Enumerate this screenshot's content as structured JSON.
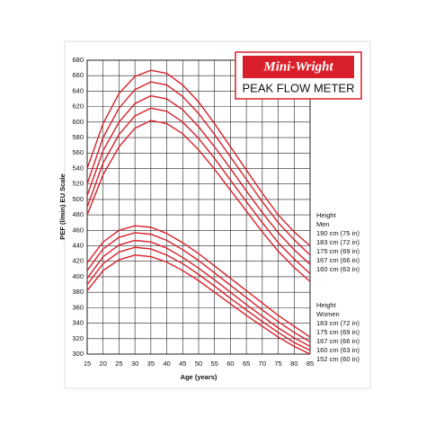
{
  "chart_data": {
    "type": "line",
    "title": "Mini-Wright",
    "subtitle": "PEAK FLOW METER",
    "x_label": "Age (years)",
    "y_label": "PEF (l/min) EU Scale",
    "x": [
      15,
      20,
      25,
      30,
      35,
      40,
      45,
      50,
      55,
      60,
      65,
      70,
      75,
      80,
      85
    ],
    "xlim": [
      15,
      85
    ],
    "xticks": [
      15,
      20,
      25,
      30,
      35,
      40,
      45,
      50,
      55,
      60,
      65,
      70,
      75,
      80,
      85
    ],
    "ylim": [
      300,
      680
    ],
    "yticks": [
      300,
      320,
      340,
      360,
      380,
      400,
      420,
      440,
      460,
      480,
      500,
      520,
      540,
      560,
      580,
      600,
      620,
      640,
      660,
      680
    ],
    "grid": true,
    "color": "#d9202a",
    "series_groups": [
      {
        "heading": "Height",
        "name": "Men",
        "series": [
          {
            "name": "190 cm (75 in)",
            "values": [
              540,
              598,
              637,
              659,
              667,
              663,
              648,
              626,
              598,
              568,
              538,
              508,
              480,
              458,
              440
            ]
          },
          {
            "name": "183 cm (72 in)",
            "values": [
              520,
              580,
              618,
              642,
              652,
              648,
              633,
              611,
              584,
              555,
              526,
              497,
              470,
              448,
              428
            ]
          },
          {
            "name": "175 cm (69 in)",
            "values": [
              505,
              563,
              600,
              624,
              634,
              630,
              616,
              594,
              568,
              540,
              511,
              483,
              457,
              435,
              416
            ]
          },
          {
            "name": "167 cm (66 in)",
            "values": [
              490,
              547,
              584,
              608,
              618,
              614,
              600,
              579,
              553,
              525,
              497,
              470,
              444,
              423,
              404
            ]
          },
          {
            "name": "160 cm (63 in)",
            "values": [
              480,
              532,
              568,
              592,
              602,
              598,
              585,
              564,
              539,
              512,
              485,
              458,
              433,
              412,
              394
            ]
          }
        ]
      },
      {
        "heading": "Height",
        "name": "Women",
        "series": [
          {
            "name": "183 cm (72 in)",
            "values": [
              418,
              445,
              460,
              466,
              464,
              456,
              444,
              430,
              414,
              398,
              382,
              366,
              350,
              336,
              322
            ]
          },
          {
            "name": "175 cm (69 in)",
            "values": [
              408,
              436,
              451,
              457,
              455,
              447,
              435,
              421,
              405,
              389,
              373,
              357,
              342,
              328,
              316
            ]
          },
          {
            "name": "167 cm (66 in)",
            "values": [
              398,
              426,
              441,
              447,
              445,
              437,
              425,
              411,
              396,
              380,
              364,
              349,
              334,
              321,
              310
            ]
          },
          {
            "name": "160 cm (63 in)",
            "values": [
              390,
              417,
              432,
              438,
              436,
              428,
              417,
              403,
              388,
              372,
              357,
              342,
              328,
              315,
              305
            ]
          },
          {
            "name": "152 cm (60 in)",
            "values": [
              382,
              408,
              422,
              428,
              426,
              419,
              408,
              395,
              380,
              365,
              350,
              336,
              322,
              310,
              300
            ]
          }
        ]
      }
    ]
  }
}
